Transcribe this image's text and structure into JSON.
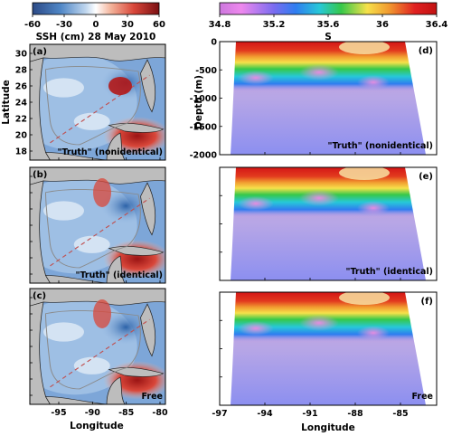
{
  "colorbar_ssh": {
    "title": "SSH (cm)  28 May 2010",
    "ticks": [
      "-60",
      "-30",
      "0",
      "30",
      "60"
    ],
    "colors": [
      "#2c4a86",
      "#4f86c6",
      "#bfd6ee",
      "#ffffff",
      "#f3b39a",
      "#d9473a",
      "#7a0f12"
    ]
  },
  "colorbar_s": {
    "title": "S",
    "ticks": [
      "34.8",
      "35.2",
      "35.6",
      "36",
      "36.4"
    ],
    "colors": [
      "#cc77dd",
      "#ee88ee",
      "#7a6cf0",
      "#2f7df0",
      "#27c8d8",
      "#36c84a",
      "#f6e14a",
      "#f19a30",
      "#e02020",
      "#c21212"
    ]
  },
  "map_axes": {
    "xlabel": "Longitude",
    "ylabel": "Latitude",
    "xticks": [
      "-95",
      "-90",
      "-85",
      "-80"
    ],
    "yticks": [
      "30",
      "28",
      "26",
      "24",
      "22",
      "20",
      "18"
    ]
  },
  "section_axes": {
    "xlabel": "Longitude",
    "ylabel": "Depth (m)",
    "xticks": [
      "-97",
      "-94",
      "-91",
      "-88",
      "-85"
    ],
    "yticks": [
      "0",
      "-500",
      "-1000",
      "-1500",
      "-2000"
    ]
  },
  "map_panels": [
    {
      "letter": "(a)",
      "caption": "\"Truth\" (nonidentical)"
    },
    {
      "letter": "(b)",
      "caption": "\"Truth\" (identical)"
    },
    {
      "letter": "(c)",
      "caption": "Free"
    }
  ],
  "section_panels": [
    {
      "letter": "(d)",
      "caption": "\"Truth\" (nonidentical)"
    },
    {
      "letter": "(e)",
      "caption": "\"Truth\" (identical)"
    },
    {
      "letter": "(f)",
      "caption": "Free"
    }
  ]
}
